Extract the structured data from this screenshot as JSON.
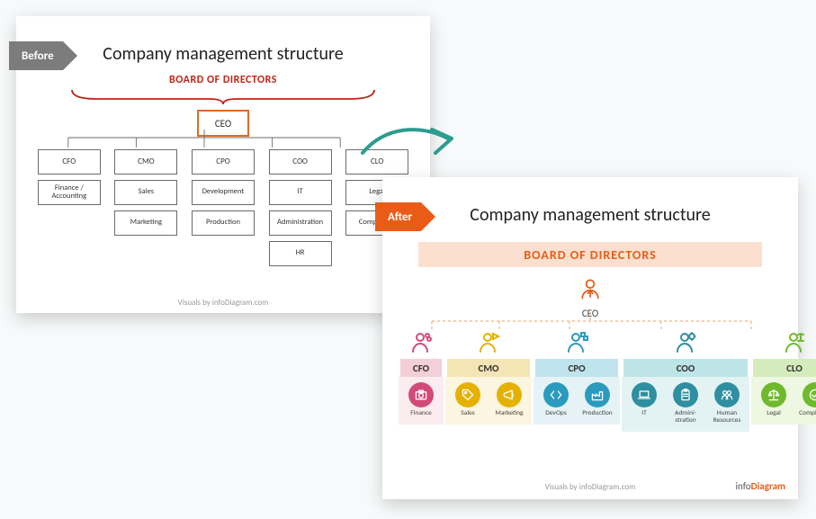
{
  "badge": {
    "before": "Before",
    "after": "After"
  },
  "title": "Company management structure",
  "credit": "Visuals by infoDiagram.com",
  "logo": {
    "part1": "info",
    "part2": "Diagram"
  },
  "before": {
    "board_label": "BOARD OF DIRECTORS",
    "ceo": "CEO",
    "brace_color": "#c02418",
    "ceo_border_color": "#e06a1e",
    "box_border_color": "#6b6b6b",
    "columns": [
      {
        "head": "CFO",
        "depts": [
          "Finance / Accounting"
        ]
      },
      {
        "head": "CMO",
        "depts": [
          "Sales",
          "Marketing"
        ]
      },
      {
        "head": "CPO",
        "depts": [
          "Development",
          "Production"
        ]
      },
      {
        "head": "COO",
        "depts": [
          "IT",
          "Administration",
          "HR"
        ]
      },
      {
        "head": "CLO",
        "depts": [
          "Legal",
          "Compliance"
        ]
      }
    ]
  },
  "arrow_color": "#2a9d8f",
  "after": {
    "board_label": "BOARD OF DIRECTORS",
    "board_bar_bg": "#fbe0cf",
    "board_text_color": "#e85c17",
    "ceo": "CEO",
    "ceo_icon_color": "#e85c17",
    "connector_color": "#f5b089",
    "columns": [
      {
        "head": "CFO",
        "icon_color": "#d24b78",
        "bar_bg": "#f3cfd9",
        "body_bg": "#fbecef",
        "bubble_bg": "#d24b78",
        "wide": false,
        "depts": [
          {
            "label": "Finance",
            "icon": "camera"
          }
        ]
      },
      {
        "head": "CMO",
        "icon_color": "#e5b100",
        "bar_bg": "#f5e4b4",
        "body_bg": "#fcf5df",
        "bubble_bg": "#e5b100",
        "wide": false,
        "depts": [
          {
            "label": "Sales",
            "icon": "tag"
          },
          {
            "label": "Marketing",
            "icon": "megaphone"
          }
        ]
      },
      {
        "head": "CPO",
        "icon_color": "#2a9bbf",
        "bar_bg": "#bfe4ee",
        "body_bg": "#e5f3f7",
        "bubble_bg": "#2a9bbf",
        "wide": false,
        "depts": [
          {
            "label": "DevOps",
            "icon": "code"
          },
          {
            "label": "Production",
            "icon": "factory"
          }
        ]
      },
      {
        "head": "COO",
        "icon_color": "#2f8fa0",
        "bar_bg": "#bde5e7",
        "body_bg": "#e3f3f4",
        "bubble_bg": "#2f8fa0",
        "wide": true,
        "depts": [
          {
            "label": "IT",
            "icon": "laptop"
          },
          {
            "label": "Administration",
            "icon": "clipboard"
          },
          {
            "label": "Human Resources",
            "icon": "people"
          }
        ]
      },
      {
        "head": "CLO",
        "icon_color": "#6fb92e",
        "bar_bg": "#d4ecbb",
        "body_bg": "#edf7e1",
        "bubble_bg": "#6fb92e",
        "wide": false,
        "depts": [
          {
            "label": "Legal",
            "icon": "scales"
          },
          {
            "label": "Compliance",
            "icon": "check"
          }
        ]
      }
    ]
  }
}
